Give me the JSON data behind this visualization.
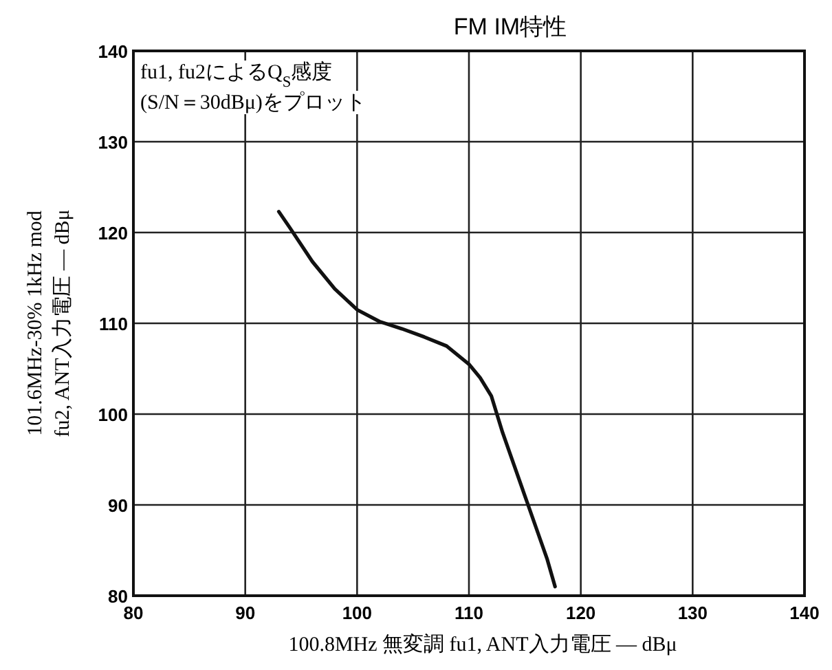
{
  "chart_data": {
    "type": "line",
    "title": "FM IM特性",
    "xlabel": "100.8MHz 無変調 fu1, ANT入力電圧 — dBμ",
    "ylabel": "101.6MHz-30% 1kHz mod\nfu2, ANT入力電圧 — dBμ",
    "annotations": [
      "fu1, fu2によるQ$_{S}$感度",
      "(S/N＝30dBμ)をプロット"
    ],
    "xlim": [
      80,
      140
    ],
    "ylim": [
      80,
      140
    ],
    "xticks": [
      80,
      90,
      100,
      110,
      120,
      130,
      140
    ],
    "yticks": [
      80,
      90,
      100,
      110,
      120,
      130,
      140
    ],
    "grid": true,
    "marker": "none",
    "line_style": "solid",
    "series": [
      {
        "color": "#111111",
        "x": [
          93,
          94,
          96,
          98,
          100,
          102,
          104,
          106,
          108,
          110,
          111,
          112,
          113,
          114,
          115,
          116,
          117,
          117.7
        ],
        "values": [
          122.3,
          120.5,
          116.8,
          113.8,
          111.5,
          110.2,
          109.4,
          108.5,
          107.5,
          105.5,
          104,
          102,
          98,
          94.5,
          91,
          87.5,
          84,
          81
        ]
      }
    ]
  }
}
